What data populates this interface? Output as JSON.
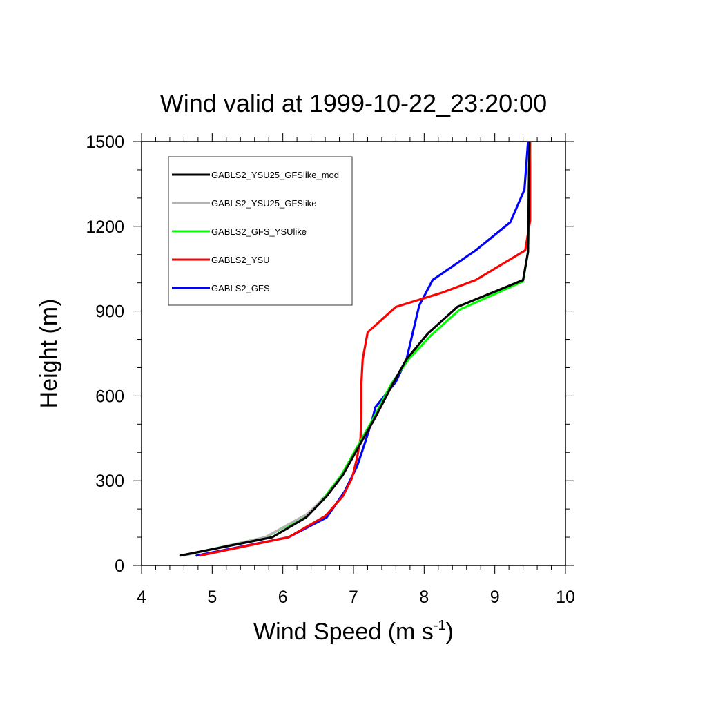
{
  "chart_data": {
    "type": "line",
    "title": "Wind valid at 1999-10-22_23:20:00",
    "xlabel": "Wind Speed (m s",
    "xlabel_sup": "-1",
    "xlabel_end": ")",
    "ylabel": "Height (m)",
    "xlim": [
      4,
      10
    ],
    "ylim": [
      0,
      1500
    ],
    "x_ticks": [
      "4",
      "5",
      "6",
      "7",
      "8",
      "9",
      "10"
    ],
    "y_ticks": [
      "0",
      "300",
      "600",
      "900",
      "1200",
      "1500"
    ],
    "legend_position": "top-left",
    "series": [
      {
        "name": "GABLS2_YSU25_GFSlike_mod",
        "color": "#000000",
        "points": [
          [
            4.55,
            35
          ],
          [
            5.85,
            100
          ],
          [
            6.33,
            170
          ],
          [
            6.62,
            245
          ],
          [
            6.85,
            320
          ],
          [
            7.05,
            410
          ],
          [
            7.3,
            520
          ],
          [
            7.55,
            640
          ],
          [
            7.75,
            730
          ],
          [
            8.05,
            820
          ],
          [
            8.47,
            915
          ],
          [
            9.4,
            1010
          ],
          [
            9.47,
            1110
          ],
          [
            9.48,
            1300
          ],
          [
            9.49,
            1500
          ]
        ]
      },
      {
        "name": "GABLS2_YSU25_GFSlike",
        "color": "#b4b4b4",
        "points": [
          [
            4.6,
            35
          ],
          [
            5.75,
            100
          ],
          [
            6.33,
            180
          ],
          [
            6.62,
            245
          ],
          [
            6.85,
            320
          ],
          [
            7.05,
            410
          ],
          [
            7.3,
            520
          ],
          [
            7.55,
            640
          ],
          [
            7.75,
            730
          ],
          [
            8.05,
            820
          ],
          [
            8.47,
            915
          ],
          [
            9.4,
            1010
          ],
          [
            9.47,
            1110
          ],
          [
            9.48,
            1300
          ],
          [
            9.49,
            1500
          ]
        ]
      },
      {
        "name": "GABLS2_GFS_YSUlike",
        "color": "#00ff00",
        "points": [
          [
            4.6,
            35
          ],
          [
            5.75,
            100
          ],
          [
            6.33,
            175
          ],
          [
            6.6,
            245
          ],
          [
            6.83,
            320
          ],
          [
            7.03,
            410
          ],
          [
            7.28,
            520
          ],
          [
            7.53,
            640
          ],
          [
            7.78,
            730
          ],
          [
            8.1,
            815
          ],
          [
            8.5,
            905
          ],
          [
            9.4,
            1005
          ],
          [
            9.47,
            1110
          ],
          [
            9.48,
            1300
          ],
          [
            9.49,
            1500
          ]
        ]
      },
      {
        "name": "GABLS2_YSU",
        "color": "#ff0000",
        "points": [
          [
            4.83,
            35
          ],
          [
            6.08,
            100
          ],
          [
            6.6,
            175
          ],
          [
            6.85,
            245
          ],
          [
            6.98,
            310
          ],
          [
            7.05,
            380
          ],
          [
            7.1,
            450
          ],
          [
            7.11,
            550
          ],
          [
            7.11,
            640
          ],
          [
            7.13,
            730
          ],
          [
            7.2,
            825
          ],
          [
            7.6,
            915
          ],
          [
            8.25,
            965
          ],
          [
            8.73,
            1010
          ],
          [
            9.43,
            1115
          ],
          [
            9.5,
            1220
          ],
          [
            9.5,
            1350
          ],
          [
            9.5,
            1500
          ]
        ]
      },
      {
        "name": "GABLS2_GFS",
        "color": "#0000ff",
        "points": [
          [
            4.78,
            35
          ],
          [
            6.08,
            100
          ],
          [
            6.62,
            170
          ],
          [
            6.87,
            260
          ],
          [
            7.05,
            350
          ],
          [
            7.17,
            440
          ],
          [
            7.27,
            520
          ],
          [
            7.31,
            560
          ],
          [
            7.6,
            650
          ],
          [
            7.75,
            730
          ],
          [
            7.93,
            920
          ],
          [
            8.12,
            1010
          ],
          [
            8.73,
            1115
          ],
          [
            9.22,
            1215
          ],
          [
            9.42,
            1330
          ],
          [
            9.47,
            1500
          ]
        ]
      }
    ]
  }
}
